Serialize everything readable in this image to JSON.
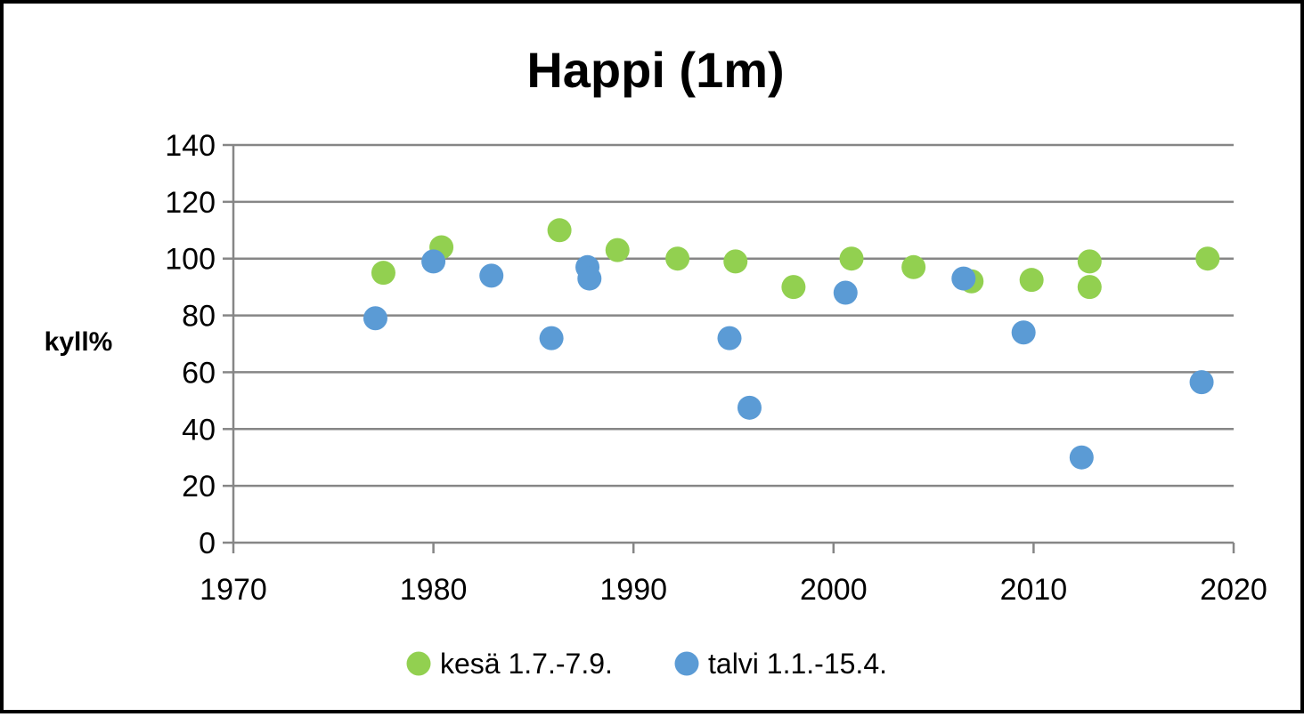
{
  "chart_data": {
    "type": "scatter",
    "title": "Happi (1m)",
    "xlabel": "",
    "ylabel": "kyll%",
    "xlim": [
      1970,
      2020
    ],
    "ylim": [
      0,
      140
    ],
    "x_ticks": [
      1970,
      1980,
      1990,
      2000,
      2010,
      2020
    ],
    "y_ticks": [
      0,
      20,
      40,
      60,
      80,
      100,
      120,
      140
    ],
    "grid": "horizontal",
    "legend": "bottom",
    "series": [
      {
        "name": "kesä 1.7.-7.9.",
        "color": "#92d050",
        "points": [
          [
            1977.5,
            95
          ],
          [
            1980.4,
            104
          ],
          [
            1986.3,
            110
          ],
          [
            1989.2,
            103
          ],
          [
            1992.2,
            100
          ],
          [
            1995.1,
            99
          ],
          [
            1998.0,
            90
          ],
          [
            2000.9,
            100
          ],
          [
            2004.0,
            97
          ],
          [
            2006.9,
            92
          ],
          [
            2009.9,
            92.5
          ],
          [
            2012.8,
            90
          ],
          [
            2012.8,
            99
          ],
          [
            2018.7,
            100
          ]
        ]
      },
      {
        "name": "talvi 1.1.-15.4.",
        "color": "#5b9bd5",
        "points": [
          [
            1977.1,
            79
          ],
          [
            1980.0,
            99
          ],
          [
            1982.9,
            94
          ],
          [
            1985.9,
            72
          ],
          [
            1987.7,
            97
          ],
          [
            1987.8,
            93
          ],
          [
            1994.8,
            72
          ],
          [
            1995.8,
            47.5
          ],
          [
            2000.6,
            88
          ],
          [
            2006.5,
            93
          ],
          [
            2009.5,
            74
          ],
          [
            2012.4,
            30
          ],
          [
            2018.4,
            56.5
          ]
        ]
      }
    ]
  }
}
